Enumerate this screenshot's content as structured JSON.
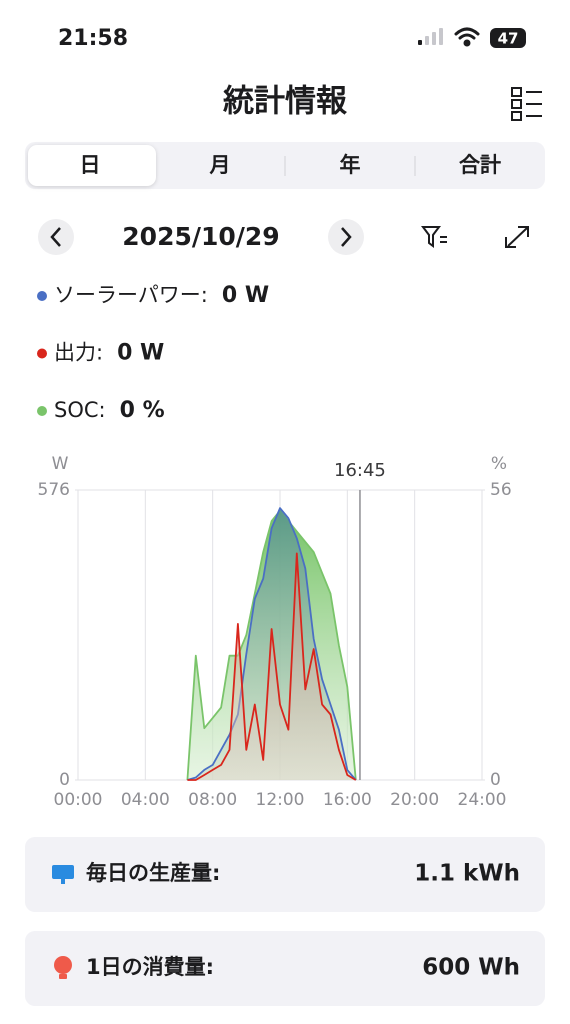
{
  "status": {
    "time": "21:58",
    "battery": "47"
  },
  "header": {
    "title": "統計情報"
  },
  "tabs": {
    "items": [
      "日",
      "月",
      "年",
      "合計"
    ],
    "active": 0
  },
  "date": "2025/10/29",
  "readings": [
    {
      "label": "ソーラーパワー:",
      "value": "0 W"
    },
    {
      "label": "出力:",
      "value": "0 W"
    },
    {
      "label": "SOC:",
      "value": "0 %"
    }
  ],
  "chart_data": {
    "type": "line",
    "ylabel": "W",
    "y2label": "%",
    "x": [
      6.5,
      7,
      7.5,
      8,
      8.5,
      9,
      9.5,
      10,
      10.5,
      11,
      11.5,
      12,
      12.5,
      13,
      13.5,
      14,
      14.5,
      15,
      15.5,
      16,
      16.5
    ],
    "xlim": [
      0,
      24
    ],
    "xticks": [
      {
        "value": 0,
        "label": "00:00"
      },
      {
        "value": 4,
        "label": "04:00"
      },
      {
        "value": 8,
        "label": "08:00"
      },
      {
        "value": 12,
        "label": "12:00"
      },
      {
        "value": 16,
        "label": "16:00"
      },
      {
        "value": 20,
        "label": "20:00"
      },
      {
        "value": 24,
        "label": "24:00"
      }
    ],
    "ylim": [
      0,
      576
    ],
    "yticks": [
      0,
      576
    ],
    "y2lim": [
      0,
      56
    ],
    "y2ticks": [
      0,
      56
    ],
    "grid": true,
    "cursor": {
      "value": 16.75,
      "label": "16:45"
    },
    "series": [
      {
        "name": "ソーラーパワー",
        "color": "#4a6fc4",
        "axis": "y",
        "values": [
          0,
          5,
          20,
          30,
          60,
          90,
          130,
          250,
          360,
          400,
          500,
          540,
          520,
          480,
          420,
          280,
          200,
          150,
          100,
          20,
          0
        ]
      },
      {
        "name": "出力",
        "color": "#d9261c",
        "axis": "y",
        "values": [
          0,
          0,
          10,
          20,
          30,
          60,
          310,
          60,
          150,
          40,
          300,
          150,
          100,
          450,
          180,
          260,
          150,
          130,
          60,
          10,
          0
        ]
      },
      {
        "name": "SOC",
        "color": "#7ac46a",
        "axis": "y2",
        "values": [
          0,
          24,
          10,
          12,
          14,
          24,
          24,
          28,
          36,
          44,
          50,
          52,
          50,
          48,
          46,
          44,
          40,
          36,
          26,
          18,
          0
        ]
      }
    ]
  },
  "summary": [
    {
      "label": "毎日の生産量:",
      "value": "1.1 kWh"
    },
    {
      "label": "1日の消費量:",
      "value": "600 Wh"
    }
  ]
}
